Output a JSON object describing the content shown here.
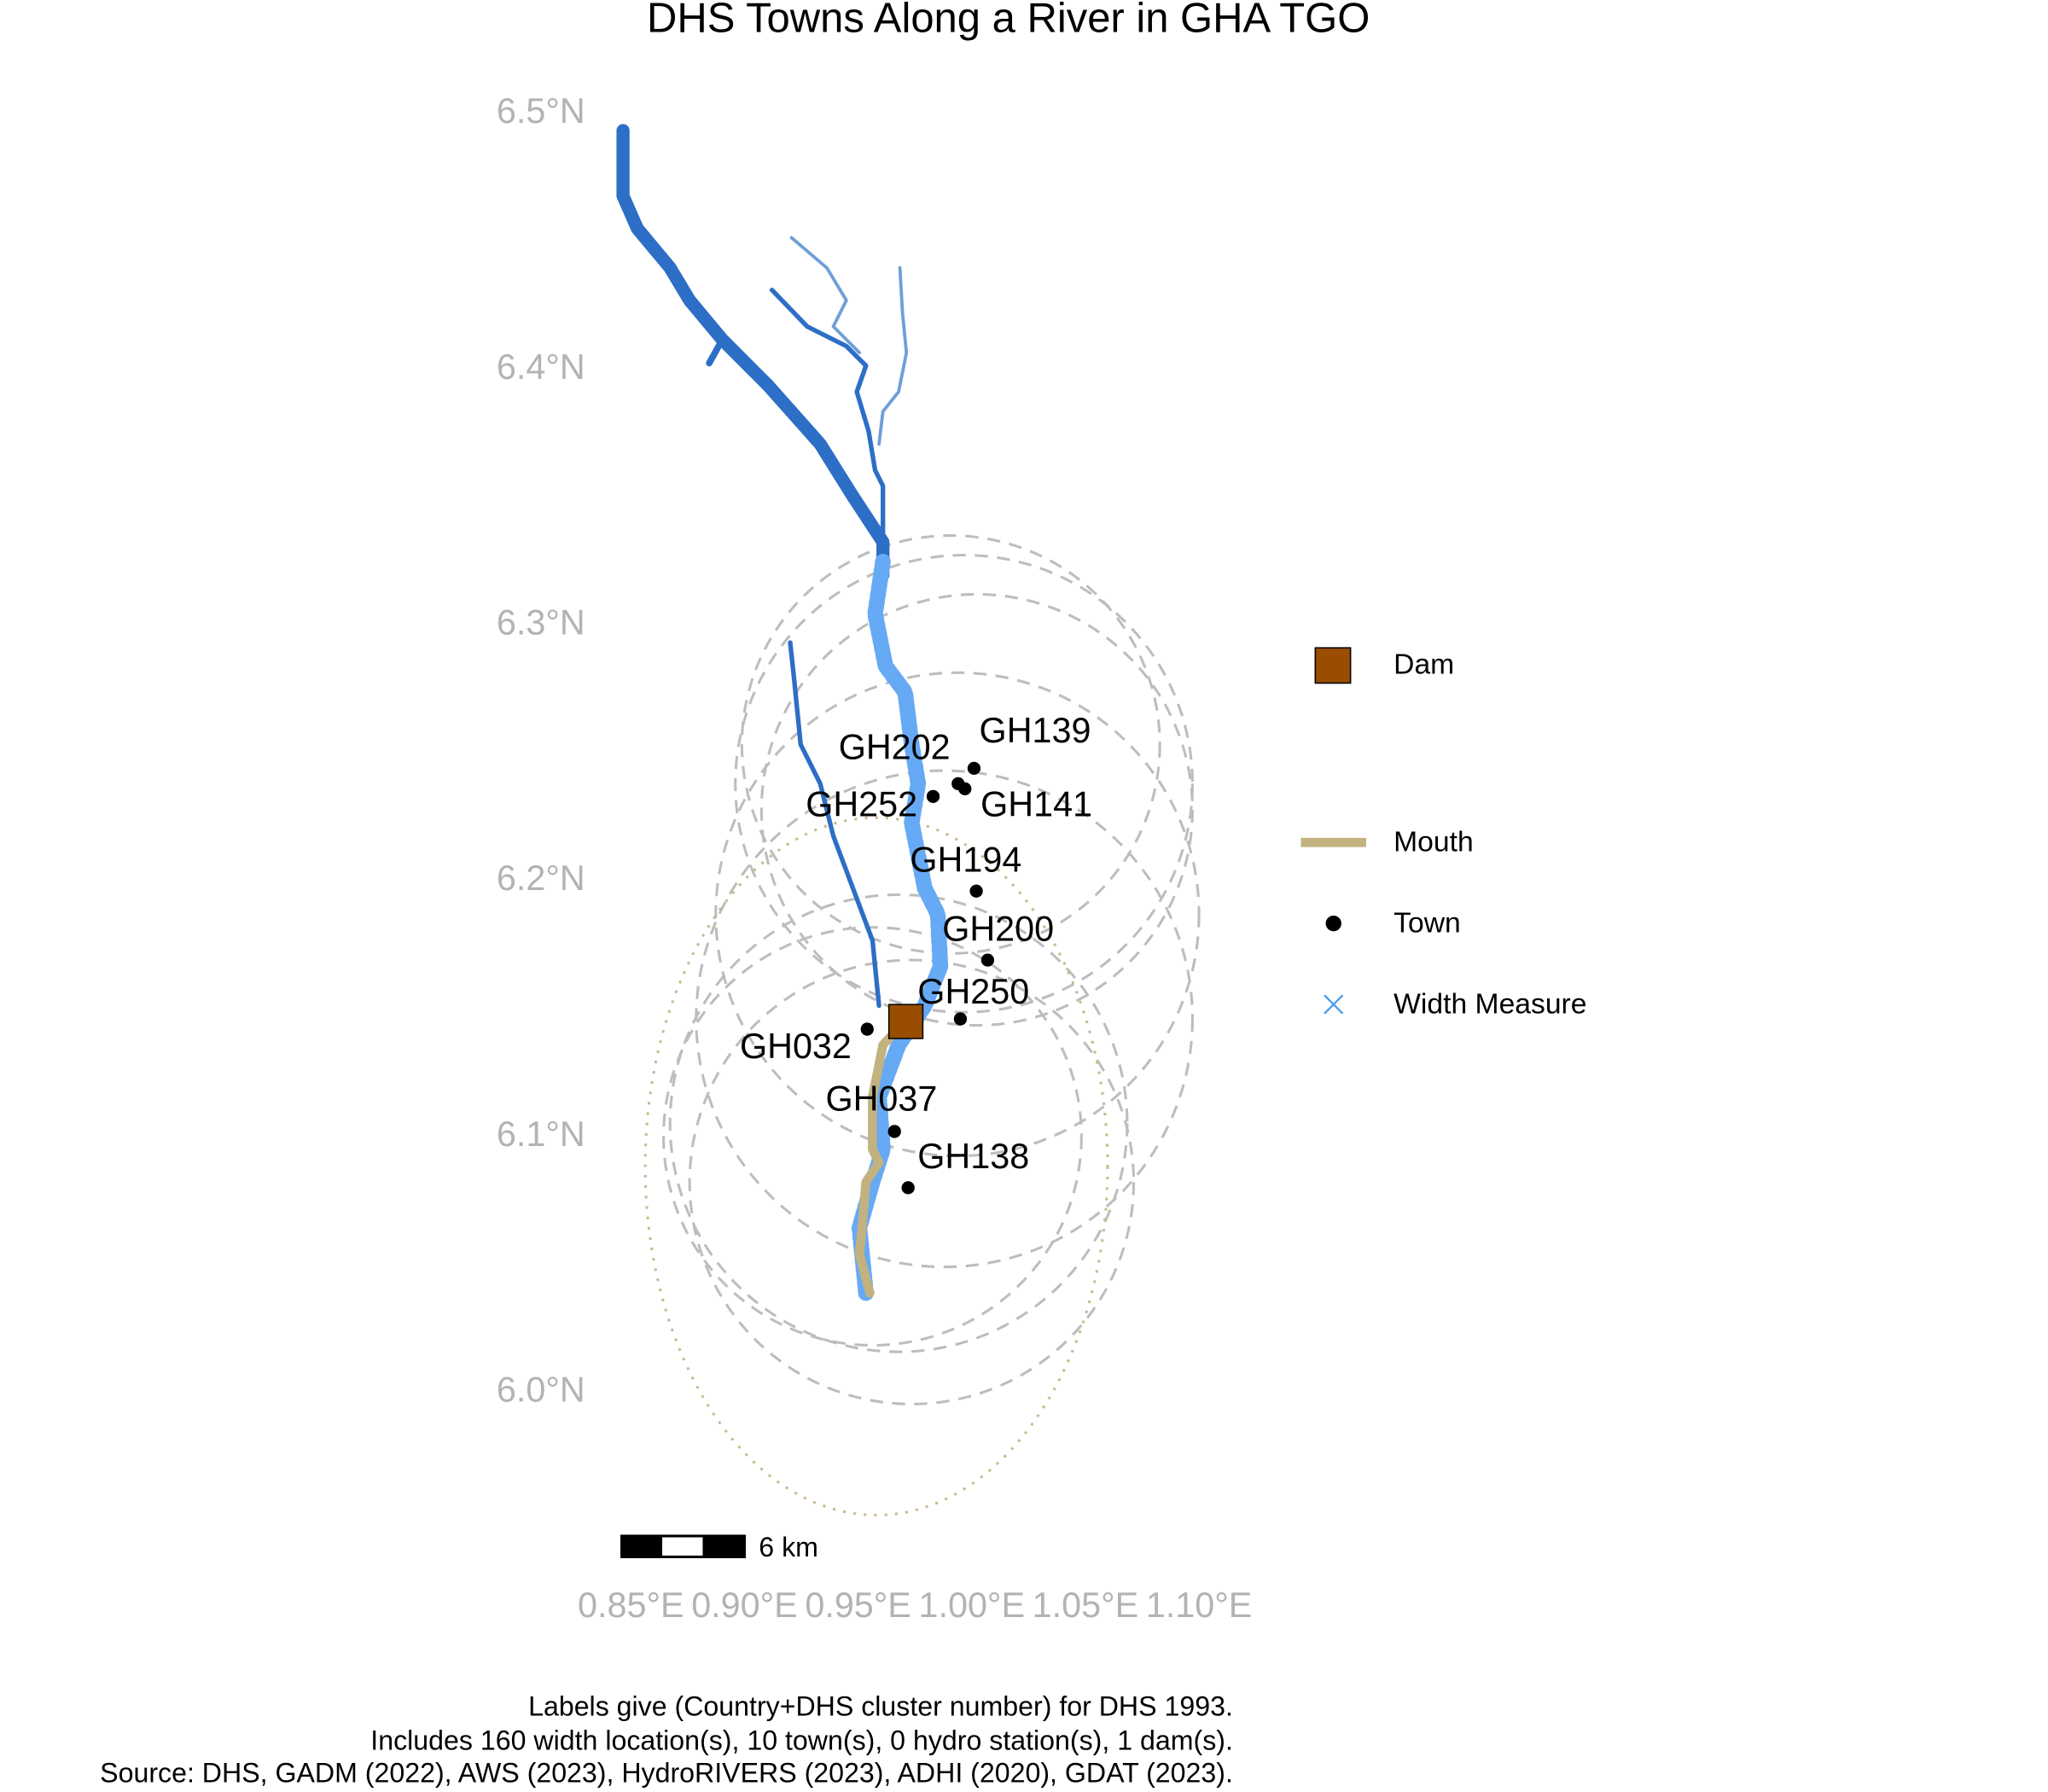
{
  "chart_data": {
    "type": "map",
    "title": "DHS Towns Along a River in GHA TGO",
    "xlim": [
      0.85,
      1.1
    ],
    "ylim": [
      6.0,
      6.5
    ],
    "xticks": [
      {
        "value": 0.85,
        "label": "0.85°E"
      },
      {
        "value": 0.9,
        "label": "0.90°E"
      },
      {
        "value": 0.95,
        "label": "0.95°E"
      },
      {
        "value": 1.0,
        "label": "1.00°E"
      },
      {
        "value": 1.05,
        "label": "1.05°E"
      },
      {
        "value": 1.1,
        "label": "1.10°E"
      }
    ],
    "yticks": [
      {
        "value": 6.0,
        "label": "6.0°N"
      },
      {
        "value": 6.1,
        "label": "6.1°N"
      },
      {
        "value": 6.2,
        "label": "6.2°N"
      },
      {
        "value": 6.3,
        "label": "6.3°N"
      },
      {
        "value": 6.4,
        "label": "6.4°N"
      },
      {
        "value": 6.5,
        "label": "6.5°N"
      }
    ],
    "towns": [
      {
        "label": "GH139",
        "lon": 1.001,
        "lat": 6.244
      },
      {
        "label": "GH202",
        "lon": 0.994,
        "lat": 6.238
      },
      {
        "label": "GH252",
        "lon": 0.983,
        "lat": 6.233
      },
      {
        "label": "GH141",
        "lon": 0.997,
        "lat": 6.236
      },
      {
        "label": "GH194",
        "lon": 1.002,
        "lat": 6.196
      },
      {
        "label": "GH200",
        "lon": 1.007,
        "lat": 6.169
      },
      {
        "label": "GH250",
        "lon": 0.995,
        "lat": 6.146
      },
      {
        "label": "GH032",
        "lon": 0.954,
        "lat": 6.142
      },
      {
        "label": "GH037",
        "lon": 0.966,
        "lat": 6.102
      },
      {
        "label": "GH138",
        "lon": 0.972,
        "lat": 6.08
      }
    ],
    "dam": {
      "lon": 0.971,
      "lat": 6.145
    },
    "legend": [
      "Dam",
      "Mouth",
      "Town",
      "Width Measure"
    ],
    "scale_bar": "6 km",
    "caption": [
      "Labels give (Country+DHS cluster number) for DHS 1993.",
      "Includes 160 width location(s), 10 town(s), 0 hydro station(s), 1 dam(s).",
      "Source: DHS, GADM (2022), AWS (2023), HydroRIVERS (2023), ADHI (2020), GDAT (2023)."
    ]
  }
}
